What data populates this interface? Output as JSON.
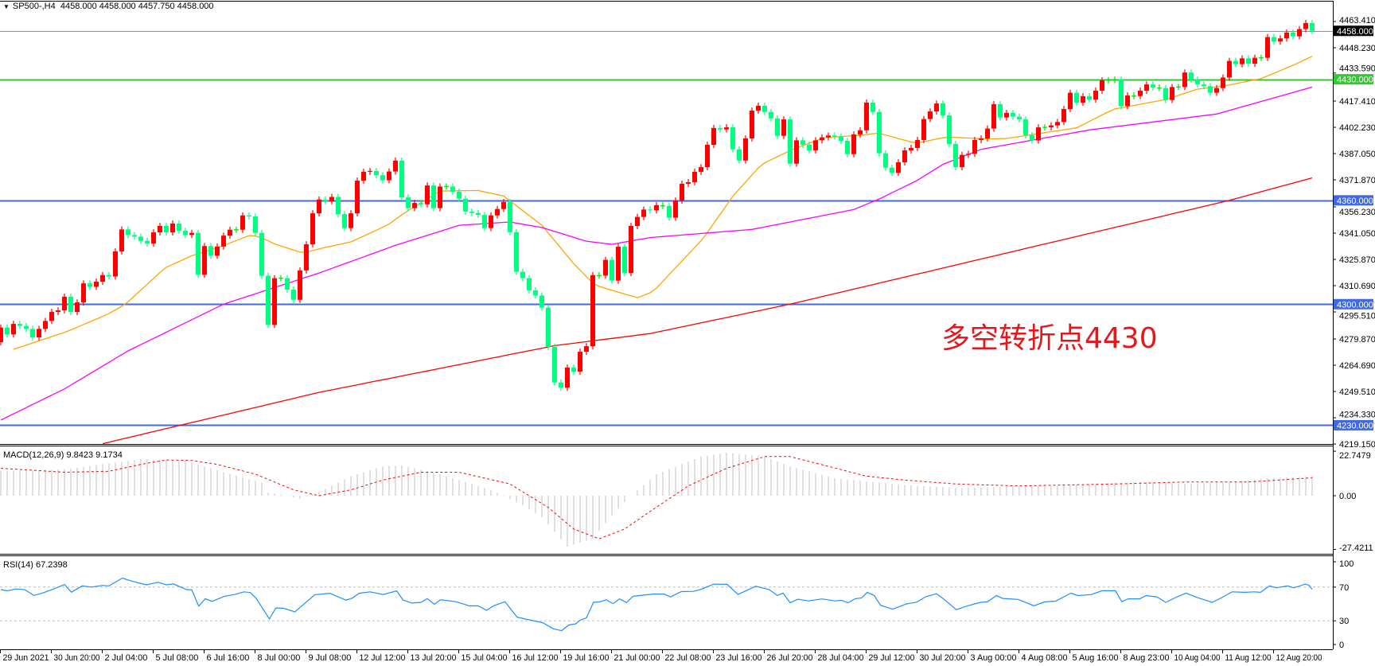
{
  "header": {
    "symbol": "SP500-,H4",
    "ohlc": "4458.000 4458.000 4457.750 4458.000"
  },
  "annotation": {
    "text": "多空转折点4430",
    "color": "#e8161b"
  },
  "colors": {
    "up_candle": "#ff0000",
    "down_candle": "#00ff80",
    "doji": "#00dd00",
    "ma_fast": "#ffa500",
    "ma_mid": "#ff00ff",
    "ma_slow": "#ff0000",
    "macd_hist": "#c0c0c0",
    "macd_signal": "#ff0000",
    "rsi": "#1e90ff",
    "rsi_levels": "#c0c0c0"
  },
  "price_axis": [
    "4463.410",
    "4448.230",
    "4433.590",
    "4417.410",
    "4402.230",
    "4387.050",
    "4371.870",
    "4356.230",
    "4341.050",
    "4325.870",
    "4310.690",
    "4295.510",
    "4279.870",
    "4264.690",
    "4249.510",
    "4234.330",
    "4219.150"
  ],
  "levels": [
    {
      "value": 4458,
      "label": "4458.000",
      "color": "#8a9099",
      "label_bg": "#000000"
    },
    {
      "value": 4430,
      "label": "4430.000",
      "color": "#32c832",
      "label_bg": "#32c832"
    },
    {
      "value": 4360,
      "label": "4360.000",
      "color": "#4169e1",
      "label_bg": "#4169e1"
    },
    {
      "value": 4300,
      "label": "4300.000",
      "color": "#4169e1",
      "label_bg": "#4169e1"
    },
    {
      "value": 4230,
      "label": "4230.000",
      "color": "#4169e1",
      "label_bg": "#4169e1"
    }
  ],
  "time_axis": [
    "29 Jun 2021",
    "30 Jun 20:00",
    "2 Jul 04:00",
    "5 Jul 08:00",
    "6 Jul 16:00",
    "8 Jul 00:00",
    "9 Jul 08:00",
    "12 Jul 12:00",
    "13 Jul 20:00",
    "15 Jul 04:00",
    "16 Jul 12:00",
    "19 Jul 16:00",
    "21 Jul 00:00",
    "22 Jul 08:00",
    "23 Jul 16:00",
    "26 Jul 20:00",
    "28 Jul 04:00",
    "29 Jul 12:00",
    "30 Jul 20:00",
    "3 Aug 00:00",
    "4 Aug 08:00",
    "5 Aug 16:00",
    "8 Aug 23:00",
    "10 Aug 04:00",
    "11 Aug 12:00",
    "12 Aug 20:00"
  ],
  "chart_data": {
    "type": "candlestick",
    "timeframe": "H4",
    "bars_per_time_label": 8,
    "first_open": 4278,
    "last_close": 4458,
    "close": [
      4286.5,
      4282.5,
      4288.6,
      4287.4,
      4285.7,
      4280.8,
      4285.7,
      4290.3,
      4295.5,
      4296.4,
      4304.3,
      4295.5,
      4301,
      4312,
      4310,
      4313,
      4316.8,
      4316,
      4330.5,
      4343.2,
      4340,
      4339,
      4336.6,
      4335,
      4341.5,
      4345.2,
      4341.5,
      4346.6,
      4342.4,
      4340,
      4341.2,
      4317,
      4333.6,
      4328,
      4333.3,
      4339.6,
      4343,
      4343,
      4351.3,
      4350.7,
      4341.2,
      4316.4,
      4288,
      4315,
      4315,
      4308.4,
      4302.5,
      4319.5,
      4334.6,
      4352.5,
      4360.5,
      4359.5,
      4362,
      4352,
      4344,
      4352.5,
      4371.4,
      4376.5,
      4377,
      4374.5,
      4371.6,
      4376.7,
      4383,
      4361.7,
      4355.5,
      4358.5,
      4357.7,
      4368.6,
      4355.5,
      4368,
      4368,
      4365,
      4361,
      4353.5,
      4352.7,
      4351.6,
      4344,
      4351.3,
      4355,
      4359,
      4341.6,
      4318.7,
      4315,
      4308,
      4305,
      4298,
      4275.3,
      4254.7,
      4251.7,
      4263.3,
      4261,
      4272.5,
      4275.7,
      4316.8,
      4316.5,
      4325.6,
      4313.6,
      4333.2,
      4318,
      4345.2,
      4350.4,
      4354.7,
      4354.2,
      4357.2,
      4356.8,
      4350,
      4359.9,
      4369.6,
      4370.5,
      4376.5,
      4379.2,
      4392.1,
      4401.8,
      4401,
      4402.2,
      4389.5,
      4383,
      4395.8,
      4411.9,
      4414.7,
      4411.1,
      4407.4,
      4397.3,
      4406.8,
      4381.2,
      4394.7,
      4392.1,
      4388.9,
      4394.7,
      4396.4,
      4397.5,
      4397,
      4394.4,
      4386.7,
      4398.1,
      4400.5,
      4416.5,
      4411.1,
      4387.2,
      4378.9,
      4375.9,
      4382,
      4388.9,
      4390.3,
      4394.9,
      4407,
      4411.4,
      4416,
      4409.1,
      4392.6,
      4379.2,
      4386.3,
      4386.9,
      4394.9,
      4395.8,
      4401.5,
      4415.6,
      4407.9,
      4410.5,
      4408.4,
      4406.8,
      4397.6,
      4394.6,
      4402.2,
      4402.2,
      4403.3,
      4405.3,
      4412.8,
      4422.2,
      4416.5,
      4420.2,
      4418.3,
      4423.4,
      4429.4,
      4429.5,
      4429.8,
      4414.5,
      4420.6,
      4420.3,
      4423.4,
      4427,
      4425.2,
      4424.9,
      4418,
      4425.5,
      4425.5,
      4433.9,
      4429.8,
      4427,
      4426,
      4422.2,
      4424.9,
      4431,
      4440.6,
      4438.7,
      4442.1,
      4439,
      4442.4,
      4442.4,
      4454.4,
      4451.8,
      4453.6,
      4457,
      4454.8,
      4459,
      4462.5,
      4458
    ],
    "moving_averages": {
      "fast": [
        [
          2,
          4273.9
        ],
        [
          10.4,
          4284.2
        ],
        [
          16.7,
          4294
        ],
        [
          19.6,
          4300
        ],
        [
          25.8,
          4321
        ],
        [
          30,
          4328
        ],
        [
          34,
          4332.6
        ],
        [
          39,
          4339.6
        ],
        [
          40.4,
          4339.3
        ],
        [
          43.3,
          4334.4
        ],
        [
          47.5,
          4329.5
        ],
        [
          50,
          4332
        ],
        [
          55,
          4336
        ],
        [
          60.8,
          4345.8
        ],
        [
          63.3,
          4352.5
        ],
        [
          69,
          4365.4
        ],
        [
          75,
          4365.7
        ],
        [
          79,
          4362.5
        ],
        [
          85,
          4345.6
        ],
        [
          90,
          4323.4
        ],
        [
          93.3,
          4311
        ],
        [
          100,
          4303.7
        ],
        [
          102.5,
          4307.3
        ],
        [
          110.3,
          4337.8
        ],
        [
          115,
          4362.4
        ],
        [
          119.5,
          4380.8
        ],
        [
          124.5,
          4389.7
        ],
        [
          129.5,
          4396.4
        ],
        [
          135.3,
          4397.6
        ],
        [
          137.8,
          4399
        ],
        [
          143.7,
          4393
        ],
        [
          148.7,
          4396.7
        ],
        [
          154.5,
          4395.5
        ],
        [
          158,
          4395.8
        ],
        [
          169,
          4401.9
        ],
        [
          174.8,
          4412.7
        ],
        [
          183,
          4418.3
        ],
        [
          188,
          4424.3
        ],
        [
          192,
          4426
        ],
        [
          198,
          4430.4
        ],
        [
          203,
          4438.1
        ],
        [
          206,
          4443.3
        ]
      ],
      "mid": [
        [
          0,
          4233
        ],
        [
          10,
          4251
        ],
        [
          20,
          4273
        ],
        [
          35,
          4300
        ],
        [
          50,
          4318
        ],
        [
          62,
          4334
        ],
        [
          72,
          4345.6
        ],
        [
          80,
          4347.5
        ],
        [
          85,
          4344.3
        ],
        [
          92,
          4336.4
        ],
        [
          96,
          4334.6
        ],
        [
          102,
          4338.5
        ],
        [
          118,
          4343.2
        ],
        [
          134,
          4354.7
        ],
        [
          138,
          4360.8
        ],
        [
          144,
          4371.6
        ],
        [
          148,
          4380.8
        ],
        [
          154,
          4389.5
        ],
        [
          171,
          4400.7
        ],
        [
          191,
          4409.9
        ],
        [
          206,
          4425.5
        ]
      ],
      "slow": [
        [
          15.6,
          4219
        ],
        [
          50,
          4249
        ],
        [
          87,
          4276
        ],
        [
          102,
          4283
        ],
        [
          124,
          4300
        ],
        [
          193,
          4360
        ],
        [
          206,
          4373
        ]
      ]
    },
    "macd": {
      "label": "MACD(12,26,9) 9.8423 9.1734",
      "axis": [
        "22.7479",
        "0.00",
        "-27.4211"
      ],
      "histogram": [
        [
          0,
          12.7
        ],
        [
          10,
          13.5
        ],
        [
          22,
          18.7
        ],
        [
          29,
          18
        ],
        [
          34,
          13
        ],
        [
          41,
          6.6
        ],
        [
          42,
          1.6
        ],
        [
          45,
          0
        ],
        [
          47,
          -1.5
        ],
        [
          50,
          2
        ],
        [
          55,
          10
        ],
        [
          60,
          15
        ],
        [
          63,
          15.5
        ],
        [
          69,
          11
        ],
        [
          77,
          3
        ],
        [
          82,
          -5
        ],
        [
          85,
          -11
        ],
        [
          89,
          -26
        ],
        [
          93,
          -22
        ],
        [
          96,
          -10
        ],
        [
          99,
          0
        ],
        [
          103,
          11
        ],
        [
          110,
          20
        ],
        [
          114,
          22
        ],
        [
          120,
          20
        ],
        [
          124,
          15
        ],
        [
          131,
          9
        ],
        [
          137,
          7
        ],
        [
          144,
          5
        ],
        [
          151,
          4
        ],
        [
          165,
          5
        ],
        [
          179,
          7
        ],
        [
          186,
          6
        ],
        [
          193,
          7
        ],
        [
          199,
          9
        ],
        [
          206,
          9.8423
        ]
      ],
      "signal": [
        [
          0,
          14
        ],
        [
          10,
          12
        ],
        [
          17,
          12.5
        ],
        [
          22,
          16
        ],
        [
          26,
          18.3
        ],
        [
          30,
          18
        ],
        [
          34,
          16
        ],
        [
          40,
          11
        ],
        [
          46,
          3
        ],
        [
          50,
          0
        ],
        [
          55,
          3
        ],
        [
          60,
          8
        ],
        [
          66,
          12
        ],
        [
          72,
          12
        ],
        [
          80,
          6
        ],
        [
          86,
          -6
        ],
        [
          90,
          -17
        ],
        [
          94,
          -22
        ],
        [
          98,
          -17
        ],
        [
          102,
          -8
        ],
        [
          108,
          5
        ],
        [
          114,
          14
        ],
        [
          120,
          20
        ],
        [
          124,
          20
        ],
        [
          130,
          15
        ],
        [
          136,
          10
        ],
        [
          142,
          8
        ],
        [
          150,
          6
        ],
        [
          160,
          5
        ],
        [
          175,
          6
        ],
        [
          186,
          7
        ],
        [
          196,
          7
        ],
        [
          206,
          9.1734
        ]
      ]
    },
    "rsi": {
      "label": "RSI(14) 67.2398",
      "axis": [
        "100",
        "70",
        "30",
        "0"
      ],
      "levels": [
        70,
        30
      ],
      "values": [
        [
          0,
          67
        ],
        [
          1,
          65.6
        ],
        [
          2.4,
          67.7
        ],
        [
          3.8,
          66.8
        ],
        [
          5.2,
          60
        ],
        [
          6.6,
          63
        ],
        [
          8.3,
          67.7
        ],
        [
          10,
          73
        ],
        [
          11.1,
          64
        ],
        [
          12.8,
          71.4
        ],
        [
          14.2,
          70
        ],
        [
          16,
          72
        ],
        [
          17,
          71.4
        ],
        [
          19.1,
          80.7
        ],
        [
          20.5,
          77.2
        ],
        [
          22.9,
          72.6
        ],
        [
          24.7,
          75.8
        ],
        [
          26,
          72.6
        ],
        [
          27.1,
          73.8
        ],
        [
          29.2,
          67
        ],
        [
          30,
          66.7
        ],
        [
          31.1,
          47.3
        ],
        [
          32.1,
          56.2
        ],
        [
          33.2,
          53
        ],
        [
          35.1,
          59.1
        ],
        [
          36.8,
          61.2
        ],
        [
          38.2,
          64.3
        ],
        [
          39.2,
          63.5
        ],
        [
          40.1,
          56.8
        ],
        [
          42.2,
          32.2
        ],
        [
          43.2,
          45.2
        ],
        [
          44.4,
          44.9
        ],
        [
          46.2,
          40.6
        ],
        [
          47.6,
          49.6
        ],
        [
          49.3,
          60.9
        ],
        [
          51.7,
          62.6
        ],
        [
          54.2,
          54.5
        ],
        [
          55.2,
          56.8
        ],
        [
          56.3,
          62.6
        ],
        [
          58,
          64.3
        ],
        [
          60.1,
          61.2
        ],
        [
          62.2,
          65.5
        ],
        [
          63.2,
          54.5
        ],
        [
          64.6,
          51
        ],
        [
          66,
          51.9
        ],
        [
          67,
          56.2
        ],
        [
          68.1,
          49.6
        ],
        [
          69.1,
          54.9
        ],
        [
          71.5,
          52.6
        ],
        [
          73.6,
          47.7
        ],
        [
          75,
          47.7
        ],
        [
          76.3,
          42.5
        ],
        [
          77.4,
          47.7
        ],
        [
          79.2,
          52.6
        ],
        [
          81.1,
          34.3
        ],
        [
          83.3,
          30.7
        ],
        [
          85.1,
          27.8
        ],
        [
          86.8,
          20.6
        ],
        [
          88.1,
          18.3
        ],
        [
          89.2,
          24.9
        ],
        [
          90.3,
          26.4
        ],
        [
          91,
          30.7
        ],
        [
          92,
          33.6
        ],
        [
          93.1,
          51.9
        ],
        [
          94.1,
          52.5
        ],
        [
          95.1,
          54.9
        ],
        [
          96.2,
          50.4
        ],
        [
          97.2,
          55.9
        ],
        [
          98.3,
          51.6
        ],
        [
          99.3,
          59.1
        ],
        [
          100.7,
          60.3
        ],
        [
          102.4,
          61.7
        ],
        [
          104.2,
          61.7
        ],
        [
          105.2,
          58.3
        ],
        [
          106.9,
          64.6
        ],
        [
          108.8,
          64.9
        ],
        [
          109.9,
          67.1
        ],
        [
          112,
          73.5
        ],
        [
          114.1,
          73.2
        ],
        [
          115.8,
          61.3
        ],
        [
          118.6,
          70.9
        ],
        [
          120.7,
          67.1
        ],
        [
          122,
          59.9
        ],
        [
          122.9,
          62.8
        ],
        [
          124,
          51.3
        ],
        [
          125.2,
          55.6
        ],
        [
          126.9,
          53.6
        ],
        [
          129,
          55.9
        ],
        [
          131.1,
          53.6
        ],
        [
          132.1,
          54.2
        ],
        [
          133.1,
          51.3
        ],
        [
          134.2,
          56.2
        ],
        [
          135.2,
          57.1
        ],
        [
          136.1,
          63.8
        ],
        [
          137.2,
          60
        ],
        [
          138.2,
          48.4
        ],
        [
          140.1,
          43.8
        ],
        [
          142.2,
          49.9
        ],
        [
          143.9,
          52.2
        ],
        [
          145.3,
          58.6
        ],
        [
          147,
          62.1
        ],
        [
          148,
          56.5
        ],
        [
          150.1,
          43.2
        ],
        [
          151.9,
          47.8
        ],
        [
          153.9,
          51.9
        ],
        [
          155,
          52.5
        ],
        [
          156.4,
          60
        ],
        [
          157.4,
          56.5
        ],
        [
          159.8,
          55.4
        ],
        [
          162.3,
          47.8
        ],
        [
          164,
          52.5
        ],
        [
          165.7,
          53.3
        ],
        [
          168.1,
          62.8
        ],
        [
          169.2,
          59.9
        ],
        [
          171.3,
          61.1
        ],
        [
          173,
          65.7
        ],
        [
          175.1,
          65.7
        ],
        [
          176.1,
          52.6
        ],
        [
          177.1,
          56
        ],
        [
          178.9,
          56
        ],
        [
          179.9,
          59.9
        ],
        [
          181.6,
          58.4
        ],
        [
          183,
          51.9
        ],
        [
          184.4,
          57.1
        ],
        [
          186.2,
          62.8
        ],
        [
          187.9,
          57.7
        ],
        [
          190.3,
          51.9
        ],
        [
          191.7,
          57.1
        ],
        [
          193.4,
          64.3
        ],
        [
          195.5,
          63.8
        ],
        [
          196.9,
          64.3
        ],
        [
          197.9,
          63.8
        ],
        [
          199.3,
          71.4
        ],
        [
          200.4,
          69.1
        ],
        [
          202.1,
          71.4
        ],
        [
          203.1,
          69.1
        ],
        [
          204.9,
          73.5
        ],
        [
          205.5,
          72.3
        ],
        [
          206,
          67.2398
        ]
      ]
    }
  }
}
